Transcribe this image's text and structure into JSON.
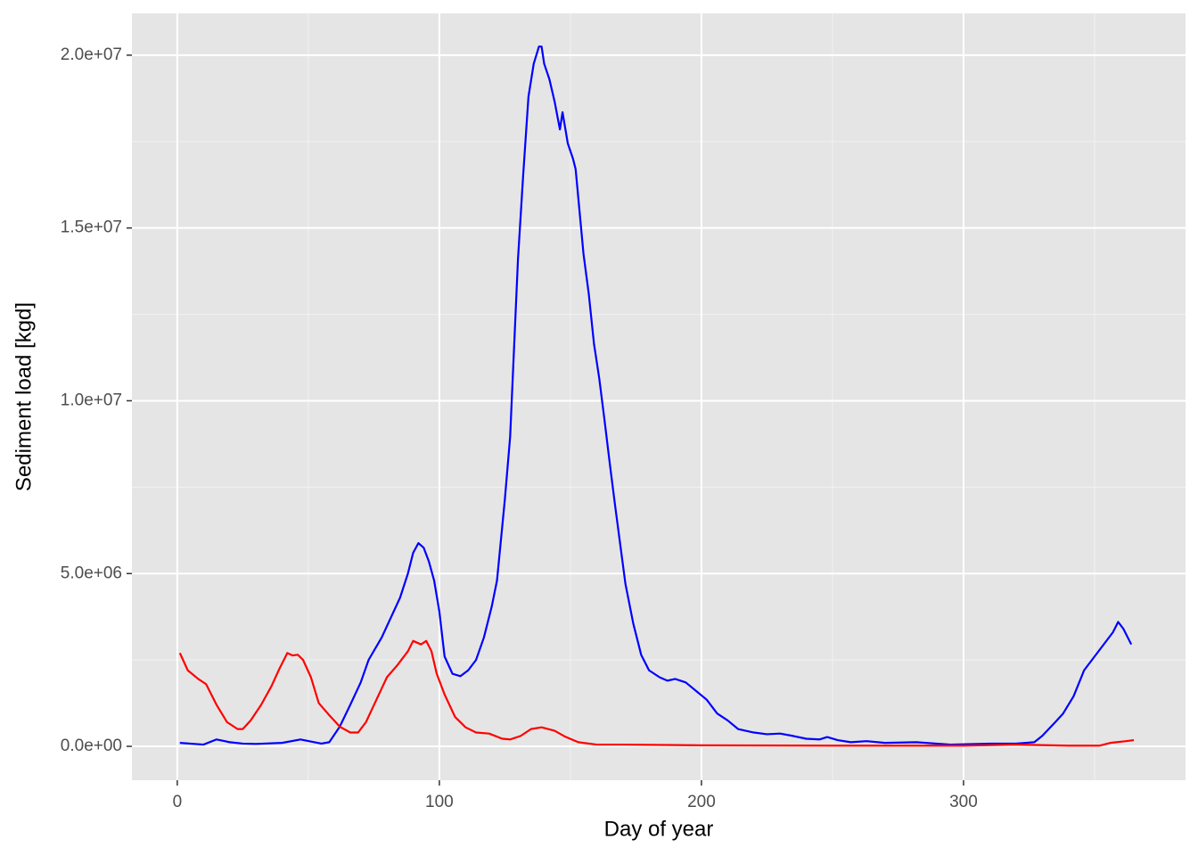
{
  "chart_data": {
    "type": "line",
    "x_label": "Day of year",
    "y_label": "Sediment load [kgd]",
    "xlim": [
      -17.3,
      384.7
    ],
    "ylim": [
      -980000,
      21210000
    ],
    "xticks": [
      0,
      100,
      200,
      300
    ],
    "yticks": [
      {
        "value": 0,
        "label": "0.0e+00"
      },
      {
        "value": 5000000,
        "label": "5.0e+06"
      },
      {
        "value": 10000000,
        "label": "1.0e+07"
      },
      {
        "value": 15000000,
        "label": "1.5e+07"
      },
      {
        "value": 20000000,
        "label": "2.0e+07"
      }
    ],
    "minor_xticks": [
      50,
      150,
      250,
      350
    ],
    "minor_yticks": [
      2500000,
      7500000,
      12500000,
      17500000
    ],
    "grid": true,
    "series": [
      {
        "color": "#0000ff",
        "x": [
          1,
          10,
          15,
          20,
          25,
          30,
          40,
          47,
          55,
          58,
          62,
          66,
          70,
          73,
          78,
          85,
          88,
          90,
          92,
          94,
          96,
          98,
          100,
          102,
          105,
          108,
          111,
          114,
          117,
          120,
          122,
          125,
          127,
          130,
          132,
          134,
          136,
          138,
          139,
          140,
          142,
          144,
          146,
          147,
          149,
          151,
          152,
          155,
          157,
          159,
          161,
          163,
          165,
          167,
          169,
          171,
          174,
          177,
          180,
          184,
          187,
          190,
          194,
          198,
          202,
          206,
          210,
          214,
          220,
          225,
          230,
          235,
          240,
          245,
          248,
          252,
          257,
          263,
          270,
          282,
          295,
          310,
          320,
          327,
          330,
          335,
          338,
          342,
          346,
          350,
          354,
          357,
          359,
          361,
          364
        ],
        "values": [
          100000,
          50000,
          200000,
          120000,
          80000,
          70000,
          100000,
          200000,
          80000,
          120000,
          570000,
          1200000,
          1850000,
          2500000,
          3150000,
          4300000,
          5000000,
          5600000,
          5880000,
          5750000,
          5350000,
          4800000,
          3900000,
          2600000,
          2100000,
          2030000,
          2200000,
          2500000,
          3150000,
          4050000,
          4800000,
          7150000,
          8950000,
          14100000,
          16550000,
          18800000,
          19750000,
          20250000,
          20250000,
          19750000,
          19300000,
          18650000,
          17850000,
          18350000,
          17450000,
          17000000,
          16700000,
          14250000,
          13100000,
          11650000,
          10650000,
          9450000,
          8200000,
          7000000,
          5850000,
          4700000,
          3550000,
          2650000,
          2200000,
          2000000,
          1900000,
          1950000,
          1850000,
          1600000,
          1350000,
          950000,
          750000,
          500000,
          400000,
          350000,
          370000,
          300000,
          220000,
          200000,
          270000,
          180000,
          120000,
          150000,
          100000,
          120000,
          50000,
          80000,
          80000,
          120000,
          300000,
          700000,
          950000,
          1450000,
          2200000,
          2600000,
          3000000,
          3300000,
          3600000,
          3400000,
          2950000
        ]
      },
      {
        "color": "#ff0000",
        "x": [
          1,
          4,
          8,
          11,
          15,
          19,
          23,
          25,
          28,
          32,
          36,
          39,
          42,
          44,
          46,
          48,
          51,
          54,
          58,
          62,
          66,
          69,
          72,
          76,
          80,
          84,
          88,
          90,
          93,
          95,
          97,
          99,
          102,
          106,
          110,
          114,
          119,
          124,
          127,
          131,
          135,
          139,
          144,
          148,
          153,
          160,
          170,
          200,
          250,
          300,
          320,
          340,
          352,
          356,
          362,
          365
        ],
        "values": [
          2700000,
          2200000,
          1950000,
          1800000,
          1200000,
          700000,
          500000,
          500000,
          750000,
          1200000,
          1750000,
          2250000,
          2700000,
          2630000,
          2650000,
          2500000,
          2000000,
          1250000,
          900000,
          570000,
          400000,
          400000,
          700000,
          1350000,
          2000000,
          2350000,
          2750000,
          3050000,
          2950000,
          3050000,
          2750000,
          2100000,
          1500000,
          850000,
          550000,
          400000,
          370000,
          220000,
          200000,
          300000,
          500000,
          550000,
          450000,
          280000,
          120000,
          50000,
          50000,
          30000,
          20000,
          20000,
          50000,
          20000,
          20000,
          100000,
          150000,
          180000
        ]
      }
    ]
  }
}
